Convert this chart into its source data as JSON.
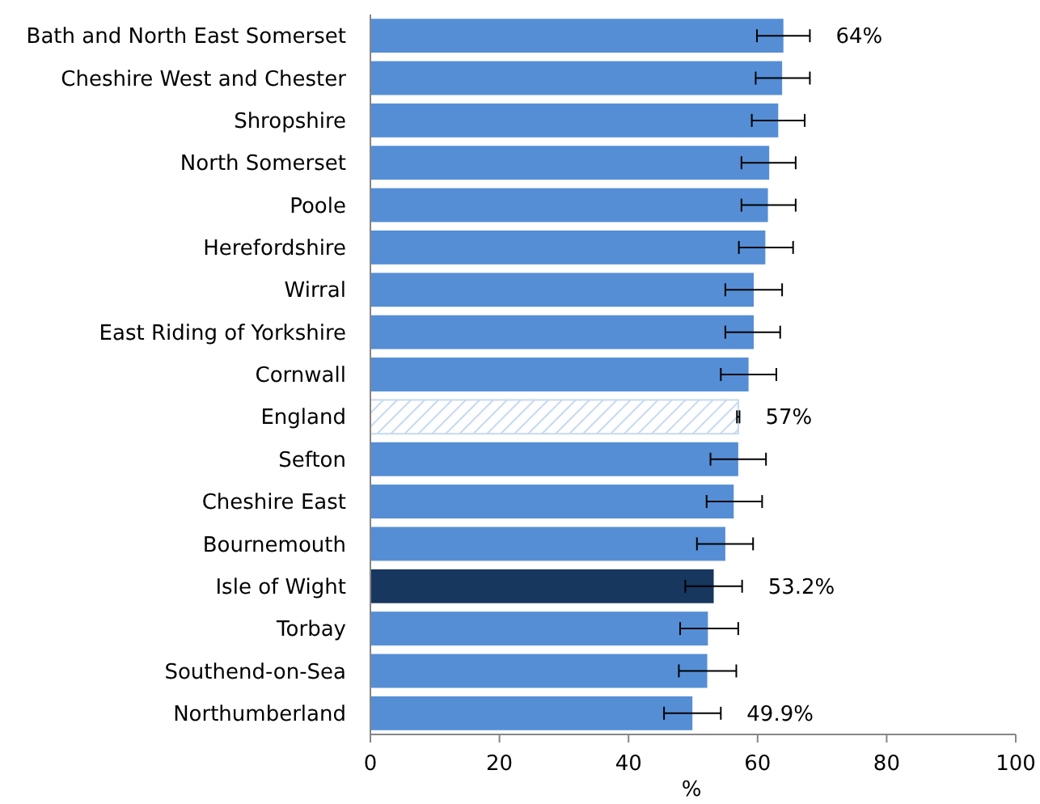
{
  "chart_data": {
    "type": "bar",
    "orientation": "horizontal",
    "xlabel": "%",
    "categories": [
      "Bath and North East Somerset",
      "Cheshire West and Chester",
      "Shropshire",
      "North Somerset",
      "Poole",
      "Herefordshire",
      "Wirral",
      "East Riding of Yorkshire",
      "Cornwall",
      "England",
      "Sefton",
      "Cheshire East",
      "Bournemouth",
      "Isle of Wight",
      "Torbay",
      "Southend-on-Sea",
      "Northumberland"
    ],
    "values": [
      64,
      63.8,
      63.2,
      61.8,
      61.6,
      61.2,
      59.4,
      59.4,
      58.6,
      57,
      57,
      56.3,
      55,
      53.2,
      52.3,
      52.2,
      49.9
    ],
    "errors": [
      [
        59.9,
        68.1
      ],
      [
        59.7,
        68.1
      ],
      [
        59.1,
        67.3
      ],
      [
        57.5,
        65.9
      ],
      [
        57.5,
        65.9
      ],
      [
        57.1,
        65.5
      ],
      [
        55,
        63.8
      ],
      [
        55,
        63.5
      ],
      [
        54.3,
        62.9
      ],
      [
        56.8,
        57.2
      ],
      [
        52.7,
        61.3
      ],
      [
        52.1,
        60.7
      ],
      [
        50.6,
        59.3
      ],
      [
        48.8,
        57.6
      ],
      [
        48,
        57
      ],
      [
        47.8,
        56.7
      ],
      [
        45.5,
        54.3
      ]
    ],
    "colors": [
      "#558ed5",
      "#558ed5",
      "#558ed5",
      "#558ed5",
      "#558ed5",
      "#558ed5",
      "#558ed5",
      "#558ed5",
      "#558ed5",
      "#c6d9f1",
      "#558ed5",
      "#558ed5",
      "#558ed5",
      "#17375e",
      "#558ed5",
      "#558ed5",
      "#558ed5"
    ],
    "value_labels": [
      "64%",
      null,
      null,
      null,
      null,
      null,
      null,
      null,
      null,
      "57%",
      null,
      null,
      null,
      "53.2%",
      null,
      null,
      "49.9%"
    ],
    "xlim": [
      0,
      100
    ],
    "xticks": [
      0,
      20,
      40,
      60,
      80,
      100
    ],
    "grid": false
  }
}
